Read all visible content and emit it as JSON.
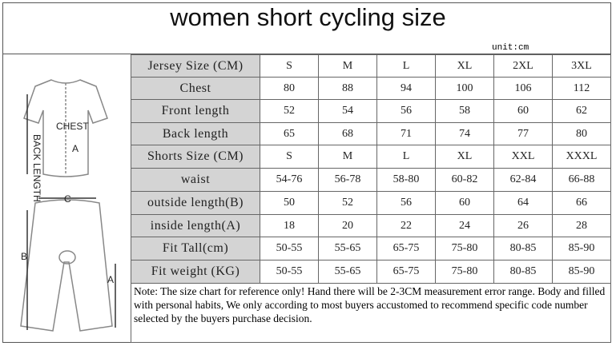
{
  "title": "women short cycling size",
  "unit": "unit:cm",
  "figure": {
    "labels": [
      "CHEST",
      "BACK LENGTH",
      "A",
      "C",
      "B",
      "A"
    ]
  },
  "table": {
    "rows": [
      [
        "Jersey Size (CM)",
        "S",
        "M",
        "L",
        "XL",
        "2XL",
        "3XL"
      ],
      [
        "Chest",
        "80",
        "88",
        "94",
        "100",
        "106",
        "112"
      ],
      [
        "Front length",
        "52",
        "54",
        "56",
        "58",
        "60",
        "62"
      ],
      [
        "Back length",
        "65",
        "68",
        "71",
        "74",
        "77",
        "80"
      ],
      [
        "Shorts Size (CM)",
        "S",
        "M",
        "L",
        "XL",
        "XXL",
        "XXXL"
      ],
      [
        "waist",
        "54-76",
        "56-78",
        "58-80",
        "60-82",
        "62-84",
        "66-88"
      ],
      [
        "outside length(B)",
        "50",
        "52",
        "56",
        "60",
        "64",
        "66"
      ],
      [
        "inside length(A)",
        "18",
        "20",
        "22",
        "24",
        "26",
        "28"
      ],
      [
        "Fit Tall(cm)",
        "50-55",
        "55-65",
        "65-75",
        "75-80",
        "80-85",
        "85-90"
      ],
      [
        "Fit weight (KG)",
        "50-55",
        "55-65",
        "65-75",
        "75-80",
        "80-85",
        "85-90"
      ]
    ]
  },
  "note": "Note: The size chart for reference only! Hand there will be 2-3CM measurement error range. Body and filled with personal habits, We only according to most buyers accustomed to recommend specific code number selected by the buyers purchase decision."
}
